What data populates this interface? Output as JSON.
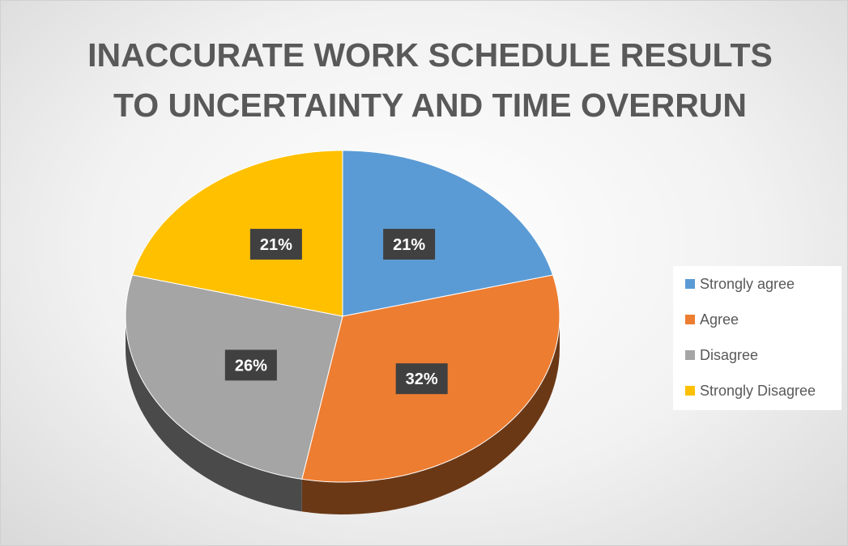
{
  "chart_data": {
    "type": "pie",
    "title": "INACCURATE WORK SCHEDULE RESULTS TO UNCERTAINTY AND TIME OVERRUN",
    "categories": [
      "Strongly agree",
      "Agree",
      "Disagree",
      "Strongly Disagree"
    ],
    "values": [
      21,
      32,
      26,
      21
    ],
    "value_labels": [
      "21%",
      "32%",
      "26%",
      "21%"
    ],
    "colors": [
      "#5b9bd5",
      "#ed7d31",
      "#a5a5a5",
      "#ffc000"
    ],
    "legend": "right"
  }
}
